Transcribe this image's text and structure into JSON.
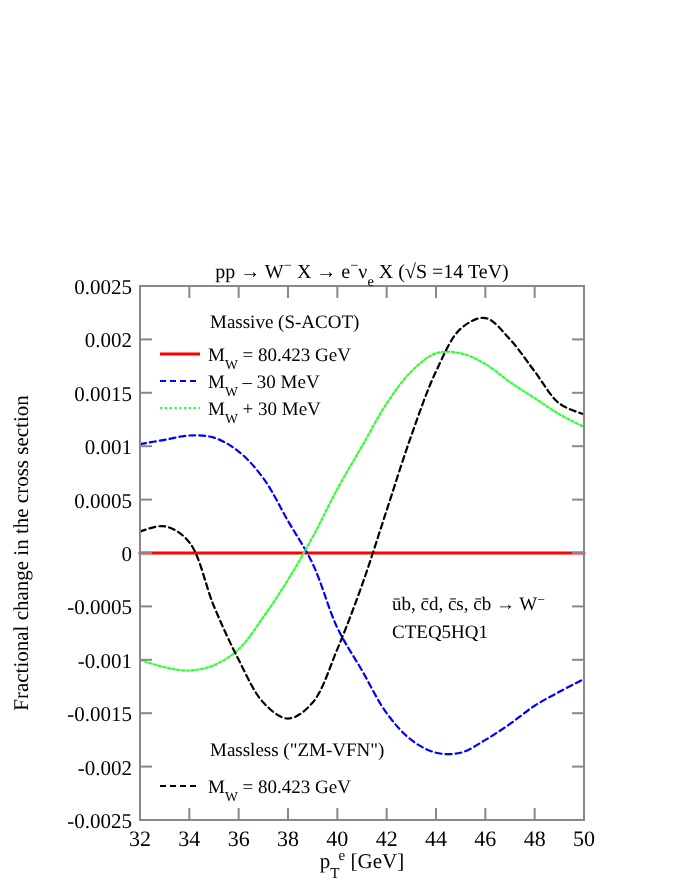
{
  "chart_data": {
    "type": "line",
    "title": "pp → W$^{−}$ X → e$^{−}$ν$_{e}$ X  (√S =14 TeV)",
    "xlabel": "p$_{T}$$^{e}$  [GeV]",
    "ylabel": "Fractional change in the cross section",
    "x": [
      32,
      33,
      34,
      35,
      36,
      37,
      38,
      39,
      40,
      41,
      42,
      43,
      44,
      45,
      46,
      47,
      48,
      49,
      50
    ],
    "series": [
      {
        "name": "M$_{W}$ = 80.423 GeV",
        "color": "#ff0000",
        "line_style": "solid",
        "values": [
          0,
          0,
          0,
          0,
          0,
          0,
          0,
          0,
          0,
          0,
          0,
          0,
          0,
          0,
          0,
          0,
          0,
          0,
          0
        ]
      },
      {
        "name": "M$_{W}$ – 30 MeV",
        "color": "#0000ff",
        "line_style": "dashed",
        "values": [
          0.00102,
          0.00106,
          0.0011,
          0.00108,
          0.00095,
          0.0007,
          0.0003,
          -0.0001,
          -0.0007,
          -0.0011,
          -0.0015,
          -0.00175,
          -0.00187,
          -0.00187,
          -0.00175,
          -0.0016,
          -0.00143,
          -0.0013,
          -0.00118
        ]
      },
      {
        "name": "M$_{W}$ + 30 MeV",
        "color": "#33ff33",
        "line_style": "dotted",
        "values": [
          -0.001,
          -0.00107,
          -0.0011,
          -0.00105,
          -0.0009,
          -0.0006,
          -0.00025,
          0.00015,
          0.0006,
          0.001,
          0.0014,
          0.0017,
          0.00187,
          0.00187,
          0.00177,
          0.0016,
          0.00145,
          0.0013,
          0.00118
        ]
      },
      {
        "name": "M$_{W}$ = 80.423 GeV",
        "color": "#000000",
        "line_style": "dashed",
        "values": [
          0.0002,
          0.00025,
          0.0001,
          -0.0005,
          -0.001,
          -0.0014,
          -0.00155,
          -0.0014,
          -0.0009,
          -0.0003,
          0.0004,
          0.0011,
          0.0017,
          0.0021,
          0.0022,
          0.002,
          0.0017,
          0.0014,
          0.0013
        ]
      }
    ],
    "xlim": [
      32,
      50
    ],
    "xticks": [
      32,
      34,
      36,
      38,
      40,
      42,
      44,
      46,
      48,
      50
    ],
    "ylim": [
      -0.0025,
      0.0025
    ],
    "yticks": [
      -0.0025,
      -0.002,
      -0.0015,
      -0.001,
      -0.0005,
      0,
      0.0005,
      0.001,
      0.0015,
      0.002,
      0.0025
    ],
    "grid": false,
    "legend": "left",
    "marker": "none",
    "annotations": [
      "Massive (S-ACOT)",
      "Massless (\"ZM-VFN\")",
      "ūb, c̄d, c̄s, c̄b → W$^{−}$",
      "CTEQ5HQ1"
    ]
  }
}
